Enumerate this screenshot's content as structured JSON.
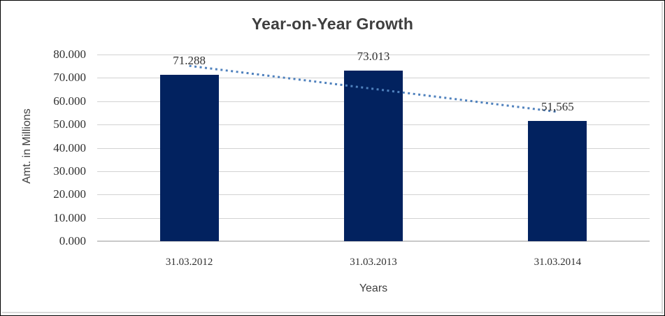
{
  "chart": {
    "title": "Year-on-Year Growth",
    "y_axis": {
      "title": "Amt. in Millions"
    },
    "x_axis": {
      "title": "Years"
    }
  },
  "chart_data": {
    "type": "bar",
    "title": "Year-on-Year Growth",
    "xlabel": "Years",
    "ylabel": "Amt. in Millions",
    "categories": [
      "31.03.2012",
      "31.03.2013",
      "31.03.2014"
    ],
    "series": [
      {
        "name": "Amt. in Millions",
        "values": [
          71.288,
          73.013,
          51.565
        ],
        "labels": [
          "71.288",
          "73.013",
          "51,565"
        ]
      }
    ],
    "y_ticks": [
      "80.000",
      "70.000",
      "60.000",
      "50.000",
      "40.000",
      "30.000",
      "20.000",
      "10.000",
      "0.000"
    ],
    "ylim": [
      0,
      80
    ],
    "grid": true,
    "legend": "none",
    "trendline": {
      "type": "linear",
      "style": "dotted",
      "series": "Amt. in Millions"
    },
    "colors": {
      "bar": "#02225f",
      "trendline": "#4f81bd",
      "gridline": "#d2d2d2",
      "axis_line": "#c9c9c9",
      "title_text": "#3f3f3f",
      "tick_text": "#303030"
    }
  }
}
